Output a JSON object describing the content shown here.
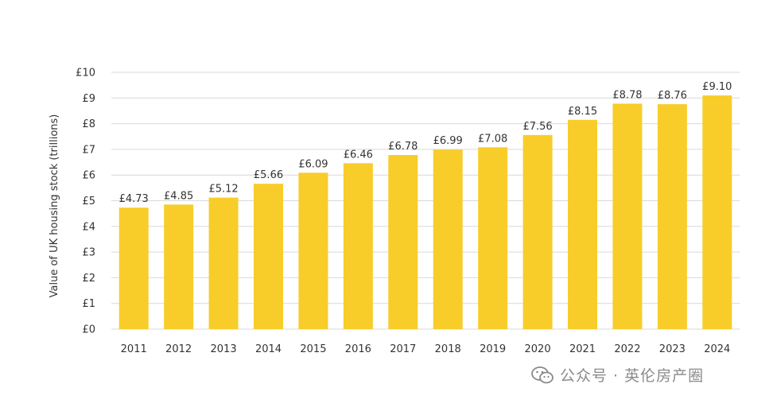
{
  "chart_data": {
    "type": "bar",
    "categories": [
      "2011",
      "2012",
      "2013",
      "2014",
      "2015",
      "2016",
      "2017",
      "2018",
      "2019",
      "2020",
      "2021",
      "2022",
      "2023",
      "2024"
    ],
    "values": [
      4.73,
      4.85,
      5.12,
      5.66,
      6.09,
      6.46,
      6.78,
      6.99,
      7.08,
      7.56,
      8.15,
      8.78,
      8.76,
      9.1
    ],
    "data_labels": [
      "£4.73",
      "£4.85",
      "£5.12",
      "£5.66",
      "£6.09",
      "£6.46",
      "£6.78",
      "£6.99",
      "£7.08",
      "£7.56",
      "£8.15",
      "£8.78",
      "£8.76",
      "£9.10"
    ],
    "ylabel": "Value of UK housing stock (trillions)",
    "xlabel": "",
    "title": "",
    "ylim": [
      0,
      10
    ],
    "yticks": [
      0,
      1,
      2,
      3,
      4,
      5,
      6,
      7,
      8,
      9,
      10
    ],
    "ytick_labels": [
      "£0",
      "£1",
      "£2",
      "£3",
      "£4",
      "£5",
      "£6",
      "£7",
      "£8",
      "£9",
      "£10"
    ],
    "grid": true,
    "legend": "none",
    "bar_color": "#F8CD2A",
    "grid_color": "#D9D9D9"
  },
  "watermark": {
    "text": "公众号 · 英伦房产圈",
    "icon": "wechat-icon"
  }
}
